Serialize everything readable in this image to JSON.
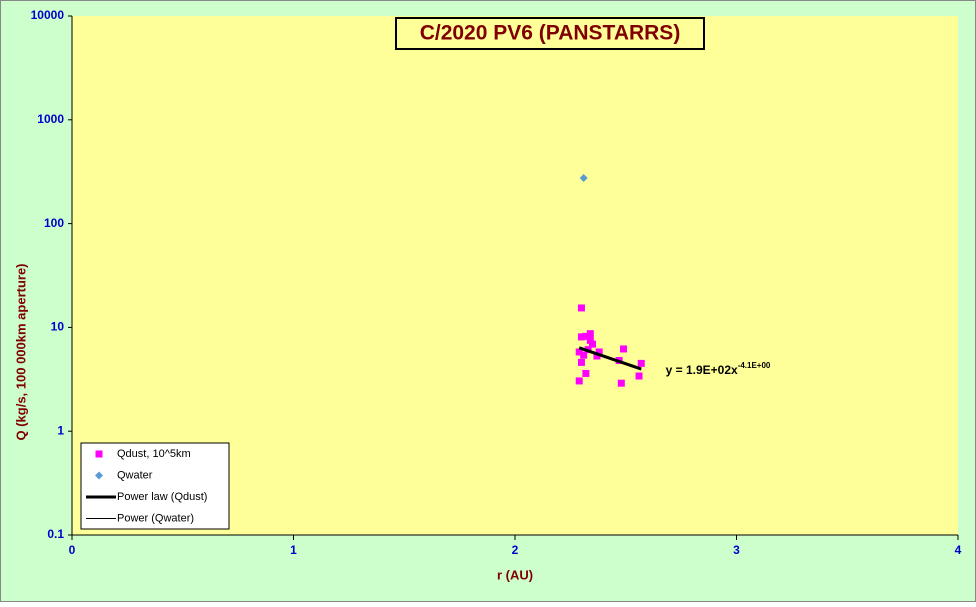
{
  "chart_data": {
    "type": "scatter",
    "title": "C/2020 PV6 (PANSTARRS)",
    "x_label": "r (AU)",
    "y_label": "Q (kg/s, 100 000km aperture)",
    "y_scale": "log",
    "xlim": [
      0,
      4
    ],
    "ylim": [
      0.1,
      10000
    ],
    "xticks": [
      0,
      1,
      2,
      3,
      4
    ],
    "yticks": [
      0.1,
      1,
      10,
      100,
      1000,
      10000
    ],
    "legend": "bottom-left",
    "series": [
      {
        "name": "Qdust, 10^5km",
        "marker": "square",
        "color": "#ff00ff",
        "x": [
          2.3,
          2.3,
          2.32,
          2.34,
          2.29,
          2.31,
          2.33,
          2.35,
          2.37,
          2.38,
          2.3,
          2.32,
          2.29,
          2.47,
          2.49,
          2.48,
          2.56,
          2.57,
          2.34
        ],
        "values": [
          15.4,
          8.1,
          8.2,
          8.7,
          5.8,
          5.4,
          6.1,
          6.9,
          5.3,
          5.8,
          4.6,
          3.6,
          3.05,
          4.8,
          6.2,
          2.9,
          3.4,
          4.5,
          7.5
        ]
      },
      {
        "name": "Qwater",
        "marker": "diamond",
        "color": "#5b9bd5",
        "x": [
          2.31
        ],
        "values": [
          275
        ]
      },
      {
        "name": "Power law (Qdust)",
        "marker": "line",
        "color": "#000000",
        "width": 3,
        "x": [
          2.29,
          2.57
        ],
        "values": [
          6.36,
          3.97
        ]
      },
      {
        "name": "Power (Qwater)",
        "marker": "line",
        "color": "#000000",
        "width": 1,
        "x": [],
        "values": []
      }
    ],
    "annotation": {
      "text": "y = 1.9E+02x",
      "exponent": "-4.1E+00",
      "x": 2.68,
      "y": 3.8
    }
  }
}
